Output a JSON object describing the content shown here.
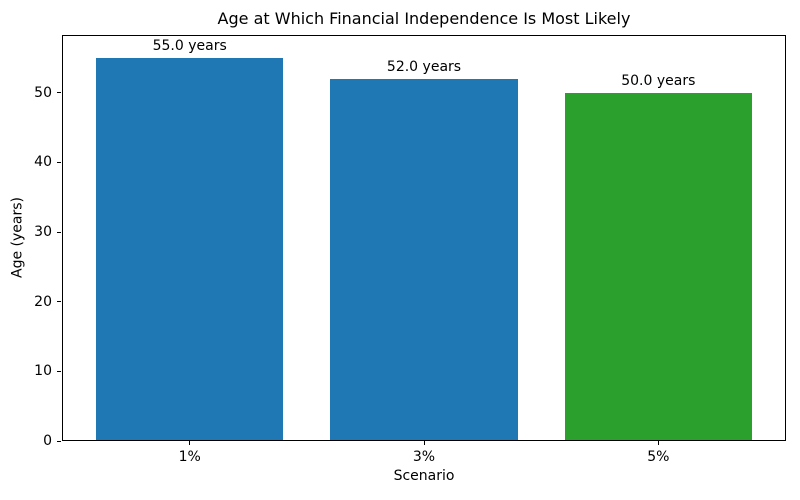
{
  "chart_data": {
    "type": "bar",
    "title": "Age at Which Financial Independence Is Most Likely",
    "xlabel": "Scenario",
    "ylabel": "Age (years)",
    "categories": [
      "1%",
      "3%",
      "5%"
    ],
    "values": [
      55.0,
      52.0,
      50.0
    ],
    "bar_labels": [
      "55.0 years",
      "52.0 years",
      "50.0 years"
    ],
    "bar_colors": [
      "#1f77b4",
      "#1f77b4",
      "#2ca02c"
    ],
    "ylim": [
      0,
      58.3
    ],
    "yticks": [
      0,
      10,
      20,
      30,
      40,
      50
    ],
    "grid": false,
    "legend_position": "none",
    "axis_color": "#000000",
    "background_color": "#ffffff"
  }
}
